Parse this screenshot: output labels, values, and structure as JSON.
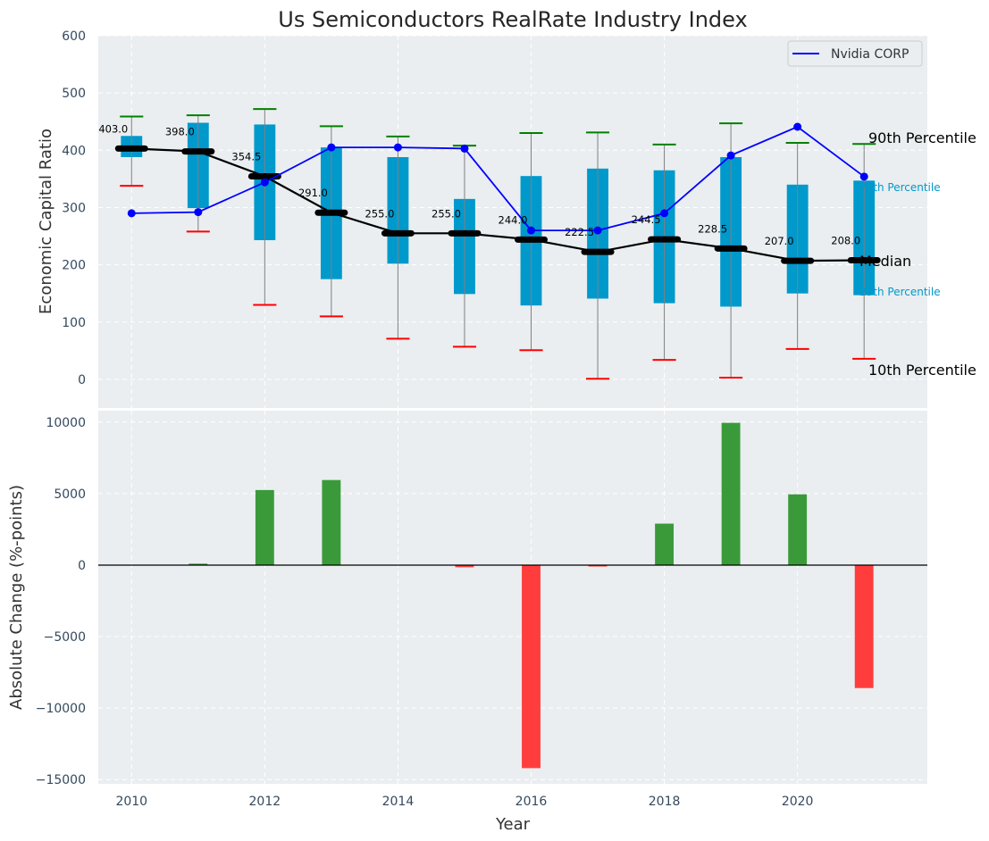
{
  "chart_data": [
    {
      "type": "box",
      "title": "Us Semiconductors RealRate Industry Index",
      "xlabel": "",
      "ylabel": "Economic Capital Ratio",
      "ylim": [
        -50,
        600
      ],
      "yticks": [
        0,
        100,
        200,
        300,
        400,
        500,
        600
      ],
      "grid": true,
      "x": [
        2010,
        2011,
        2012,
        2013,
        2014,
        2015,
        2016,
        2017,
        2018,
        2019,
        2020,
        2021
      ],
      "percentile_90": [
        459,
        461,
        472,
        442,
        424,
        408,
        430,
        431,
        410,
        447,
        413,
        411
      ],
      "percentile_75": [
        425,
        448,
        445,
        405,
        388,
        315,
        355,
        368,
        365,
        388,
        340,
        347
      ],
      "median": [
        403.0,
        398.0,
        354.5,
        291.0,
        255.0,
        255.0,
        244.0,
        222.5,
        244.5,
        228.5,
        207.0,
        208.0
      ],
      "median_labels": [
        "403.0",
        "398.0",
        "354.5",
        "291.0",
        "255.0",
        "255.0",
        "244.0",
        "222.5",
        "244.5",
        "228.5",
        "207.0",
        "208.0"
      ],
      "percentile_25": [
        388,
        299,
        243,
        175,
        202,
        149,
        129,
        141,
        133,
        127,
        150,
        147
      ],
      "percentile_10": [
        338,
        258,
        130,
        110,
        71,
        57,
        51,
        1,
        34,
        3,
        53,
        36
      ],
      "series": [
        {
          "name": "Nvidia CORP",
          "color": "#0000ff",
          "values": [
            290,
            292,
            344,
            405,
            405,
            403,
            260,
            260,
            290,
            391,
            441,
            354
          ]
        }
      ],
      "legend": {
        "entries": [
          "Nvidia CORP"
        ],
        "placement": "top-right"
      },
      "annotations": [
        "90th Percentile",
        "75th Percentile",
        "Median",
        "25th Percentile",
        "10th Percentile"
      ],
      "colors": {
        "box": "#0099cc",
        "median": "#000000",
        "p90_cap": "#008000",
        "p10_cap": "#ff0000",
        "whisker": "#808080",
        "panel_bg": "#eaeef0"
      }
    },
    {
      "type": "bar",
      "xlabel": "Year",
      "ylabel": "Absolute Change (%-points)",
      "xlim": [
        2009.5,
        2021.95
      ],
      "xticks": [
        2010,
        2012,
        2014,
        2016,
        2018,
        2020
      ],
      "ylim": [
        -15300,
        10800
      ],
      "yticks": [
        -15000,
        -10000,
        -5000,
        0,
        5000,
        10000
      ],
      "ytick_labels": [
        "−15000",
        "−10000",
        "−5000",
        "0",
        "5000",
        "10000"
      ],
      "grid": true,
      "x": [
        2010,
        2011,
        2012,
        2013,
        2014,
        2015,
        2016,
        2017,
        2018,
        2019,
        2020,
        2021
      ],
      "values": [
        0,
        100,
        5250,
        5950,
        0,
        -150,
        -14200,
        -100,
        2900,
        9950,
        4950,
        -8600
      ],
      "colors": {
        "positive": "#3a9a3a",
        "negative": "#ff3d3d",
        "zero_line": "#000000"
      }
    }
  ]
}
